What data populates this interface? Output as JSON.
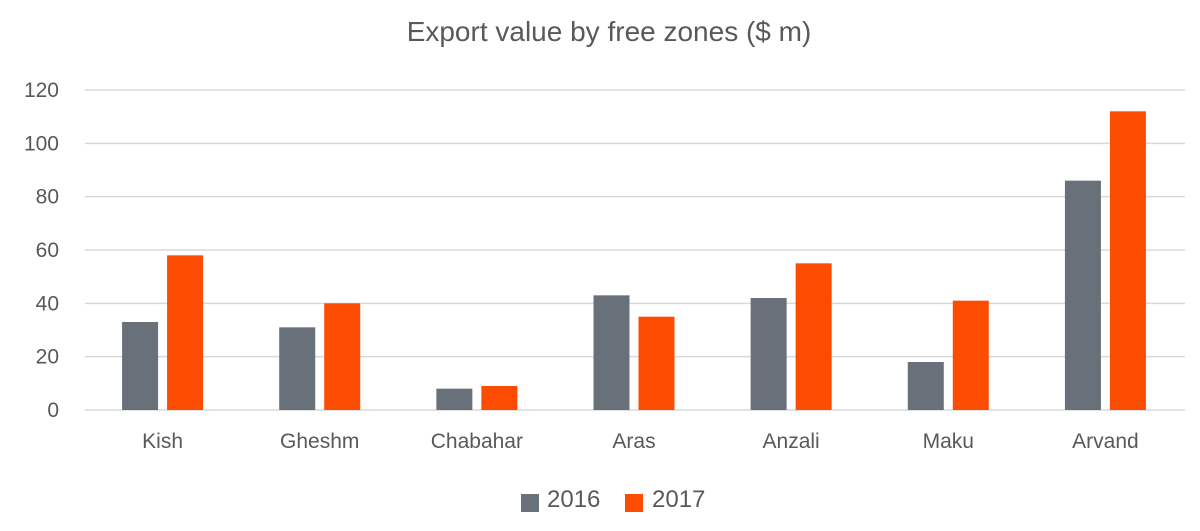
{
  "chart_data": {
    "type": "bar",
    "title": "Export value by free zones ($ m)",
    "xlabel": "",
    "ylabel": "",
    "ylim": [
      0,
      120
    ],
    "yticks": [
      "0",
      "20",
      "40",
      "60",
      "80",
      "100",
      "120"
    ],
    "grid": true,
    "legend_position": "bottom",
    "categories": [
      "Kish",
      "Gheshm",
      "Chabahar",
      "Aras",
      "Anzali",
      "Maku",
      "Arvand"
    ],
    "series": [
      {
        "name": "2016",
        "color": "#68717a",
        "values": [
          33,
          31,
          8,
          43,
          42,
          18,
          86
        ]
      },
      {
        "name": "2017",
        "color": "#fc4c02",
        "values": [
          58,
          40,
          9,
          35,
          55,
          41,
          112
        ]
      }
    ]
  }
}
